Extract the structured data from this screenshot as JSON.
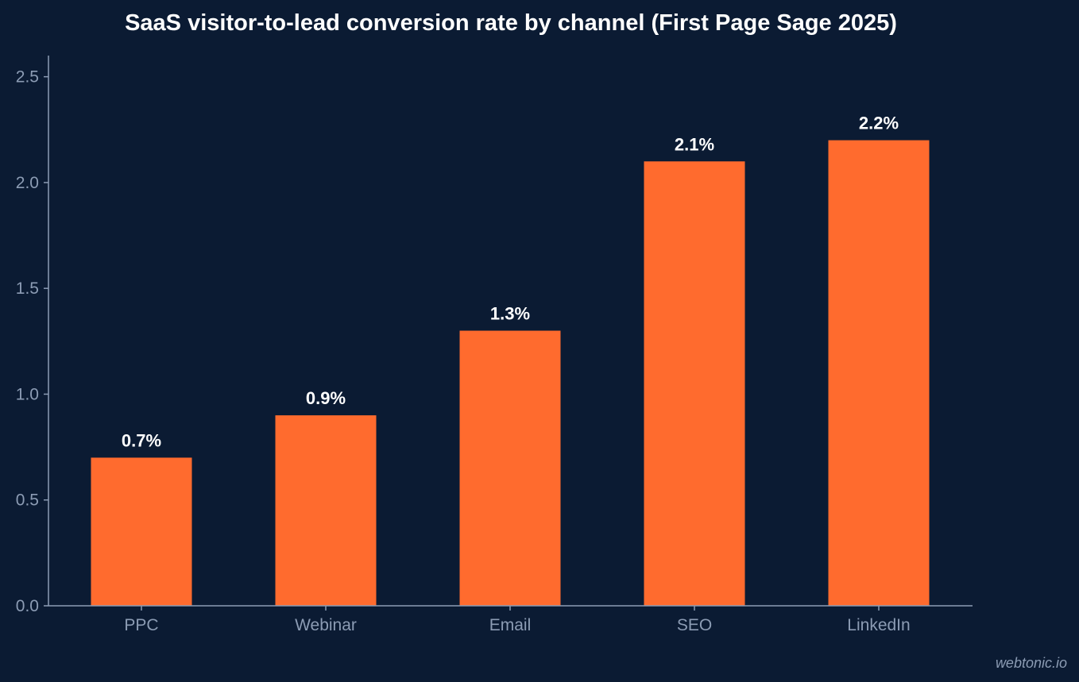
{
  "chart_data": {
    "type": "bar",
    "title": "SaaS visitor-to-lead conversion rate by channel (First Page Sage 2025)",
    "xlabel": "",
    "ylabel": "",
    "categories": [
      "PPC",
      "Webinar",
      "Email",
      "SEO",
      "LinkedIn"
    ],
    "values": [
      0.7,
      0.9,
      1.3,
      2.1,
      2.2
    ],
    "data_labels": [
      "0.7%",
      "0.9%",
      "1.3%",
      "2.1%",
      "2.2%"
    ],
    "ylim": [
      0,
      2.6
    ],
    "yticks": [
      0.0,
      0.5,
      1.0,
      1.5,
      2.0,
      2.5
    ],
    "ytick_labels": [
      "0.0",
      "0.5",
      "1.0",
      "1.5",
      "2.0",
      "2.5"
    ],
    "grid": false,
    "colors": {
      "background": "#0b1b33",
      "bar": "#ff6b2e",
      "axis": "#8c9cb4",
      "text": "#ffffff"
    }
  },
  "watermark": "webtonic.io"
}
